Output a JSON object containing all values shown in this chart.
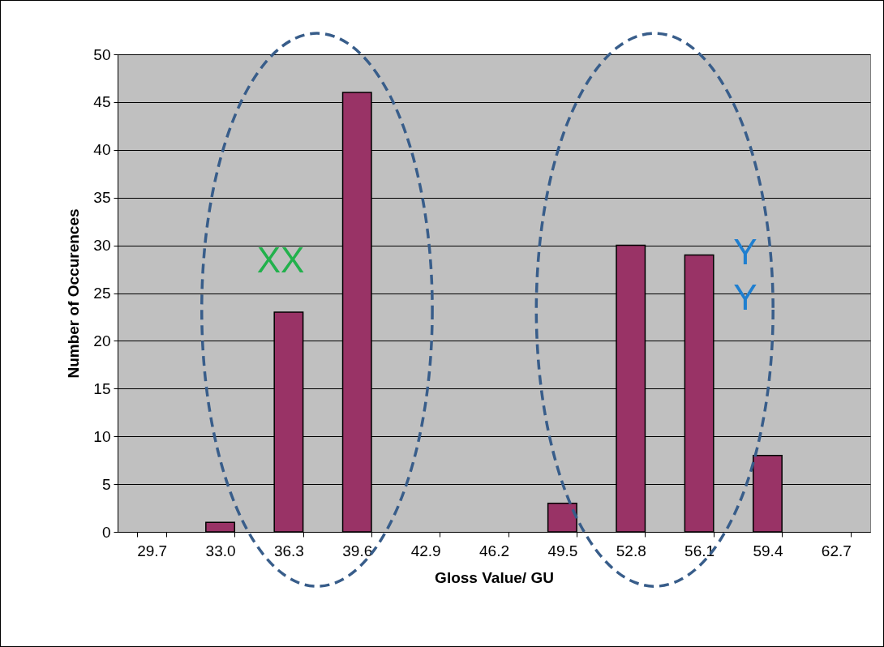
{
  "chart_data": {
    "type": "bar",
    "xlabel": "Gloss Value/ GU",
    "ylabel": "Number of Occurences",
    "categories": [
      "29.7",
      "33.0",
      "36.3",
      "39.6",
      "42.9",
      "46.2",
      "49.5",
      "52.8",
      "56.1",
      "59.4",
      "62.7"
    ],
    "values": [
      null,
      1,
      23,
      46,
      null,
      null,
      3,
      30,
      29,
      8,
      null
    ],
    "color": "#993366",
    "ylim": [
      0,
      50
    ],
    "yticks": [
      0,
      5,
      10,
      15,
      20,
      25,
      30,
      35,
      40,
      45,
      50
    ],
    "grid": "y",
    "annotations": [
      "XX",
      "Y",
      "Y"
    ]
  }
}
